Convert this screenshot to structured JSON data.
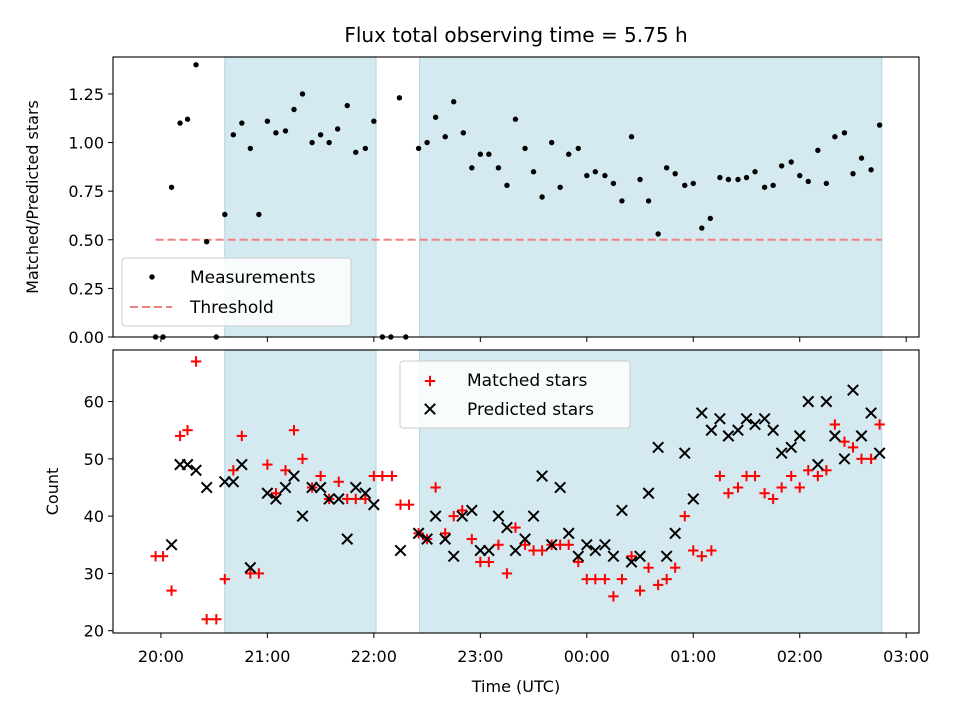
{
  "chart_data": [
    {
      "type": "scatter",
      "panel": "top",
      "title": "Flux total observing time = 5.75 h",
      "xlabel": "",
      "ylabel": "Matched/Predicted stars",
      "ylim": [
        0,
        1.44
      ],
      "yticks": [
        "0.00",
        "0.25",
        "0.50",
        "0.75",
        "1.00",
        "1.25"
      ],
      "x_axis": "time (UTC, hours; 24-27 = 00:00-03:00 next day)",
      "xlim": [
        19.55,
        27.12
      ],
      "observing_windows": [
        [
          20.6,
          22.02
        ],
        [
          22.43,
          26.77
        ]
      ],
      "legend": {
        "placement": "lower-left",
        "entries": [
          "Measurements",
          "Threshold"
        ]
      },
      "threshold": {
        "name": "Threshold",
        "value": 0.5,
        "x_range": [
          19.95,
          26.77
        ],
        "color": "#f08080"
      },
      "series": [
        {
          "name": "Measurements",
          "color": "#000000",
          "marker": "dot",
          "points": [
            [
              19.95,
              0.0
            ],
            [
              20.02,
              0.0
            ],
            [
              20.1,
              0.77
            ],
            [
              20.18,
              1.1
            ],
            [
              20.25,
              1.12
            ],
            [
              20.33,
              1.4
            ],
            [
              20.43,
              0.49
            ],
            [
              20.52,
              0.0
            ],
            [
              20.6,
              0.63
            ],
            [
              20.68,
              1.04
            ],
            [
              20.76,
              1.1
            ],
            [
              20.84,
              0.97
            ],
            [
              20.92,
              0.63
            ],
            [
              21.0,
              1.11
            ],
            [
              21.08,
              1.05
            ],
            [
              21.17,
              1.06
            ],
            [
              21.25,
              1.17
            ],
            [
              21.33,
              1.25
            ],
            [
              21.42,
              1.0
            ],
            [
              21.5,
              1.04
            ],
            [
              21.58,
              1.0
            ],
            [
              21.66,
              1.07
            ],
            [
              21.75,
              1.19
            ],
            [
              21.83,
              0.95
            ],
            [
              21.92,
              0.97
            ],
            [
              22.0,
              1.11
            ],
            [
              22.08,
              0.0
            ],
            [
              22.16,
              0.0
            ],
            [
              22.24,
              1.23
            ],
            [
              22.3,
              0.0
            ],
            [
              22.42,
              0.97
            ],
            [
              22.5,
              1.0
            ],
            [
              22.58,
              1.13
            ],
            [
              22.67,
              1.03
            ],
            [
              22.75,
              1.21
            ],
            [
              22.84,
              1.05
            ],
            [
              22.92,
              0.87
            ],
            [
              23.0,
              0.94
            ],
            [
              23.08,
              0.94
            ],
            [
              23.17,
              0.87
            ],
            [
              23.25,
              0.78
            ],
            [
              23.33,
              1.12
            ],
            [
              23.42,
              0.97
            ],
            [
              23.5,
              0.85
            ],
            [
              23.58,
              0.72
            ],
            [
              23.67,
              1.0
            ],
            [
              23.75,
              0.77
            ],
            [
              23.83,
              0.94
            ],
            [
              23.92,
              0.97
            ],
            [
              24.0,
              0.83
            ],
            [
              24.08,
              0.85
            ],
            [
              24.17,
              0.83
            ],
            [
              24.25,
              0.79
            ],
            [
              24.33,
              0.7
            ],
            [
              24.42,
              1.03
            ],
            [
              24.5,
              0.81
            ],
            [
              24.58,
              0.7
            ],
            [
              24.67,
              0.53
            ],
            [
              24.75,
              0.87
            ],
            [
              24.83,
              0.84
            ],
            [
              24.92,
              0.78
            ],
            [
              25.0,
              0.79
            ],
            [
              25.08,
              0.56
            ],
            [
              25.16,
              0.61
            ],
            [
              25.25,
              0.82
            ],
            [
              25.33,
              0.81
            ],
            [
              25.42,
              0.81
            ],
            [
              25.5,
              0.82
            ],
            [
              25.58,
              0.85
            ],
            [
              25.67,
              0.77
            ],
            [
              25.75,
              0.78
            ],
            [
              25.83,
              0.88
            ],
            [
              25.92,
              0.9
            ],
            [
              26.0,
              0.83
            ],
            [
              26.08,
              0.8
            ],
            [
              26.17,
              0.96
            ],
            [
              26.25,
              0.79
            ],
            [
              26.33,
              1.03
            ],
            [
              26.42,
              1.05
            ],
            [
              26.5,
              0.84
            ],
            [
              26.58,
              0.92
            ],
            [
              26.67,
              0.86
            ],
            [
              26.75,
              1.09
            ]
          ]
        }
      ]
    },
    {
      "type": "scatter",
      "panel": "bottom",
      "xlabel": "Time (UTC)",
      "ylabel": "Count",
      "ylim": [
        19.6,
        69.0
      ],
      "yticks": [
        "20",
        "30",
        "40",
        "50",
        "60"
      ],
      "x_axis": "time (UTC, hours; 24-27 = 00:00-03:00 next day)",
      "xlim": [
        19.55,
        27.12
      ],
      "xticks": [
        "20:00",
        "21:00",
        "22:00",
        "23:00",
        "00:00",
        "01:00",
        "02:00",
        "03:00"
      ],
      "observing_windows": [
        [
          20.6,
          22.02
        ],
        [
          22.43,
          26.77
        ]
      ],
      "legend": {
        "placement": "upper-center",
        "entries": [
          "Matched stars",
          "Predicted stars"
        ]
      },
      "series": [
        {
          "name": "Matched stars",
          "color": "#ff0000",
          "marker": "plus",
          "points": [
            [
              19.95,
              33
            ],
            [
              20.02,
              33
            ],
            [
              20.1,
              27
            ],
            [
              20.18,
              54
            ],
            [
              20.25,
              55
            ],
            [
              20.33,
              67
            ],
            [
              20.43,
              22
            ],
            [
              20.52,
              22
            ],
            [
              20.6,
              29
            ],
            [
              20.68,
              48
            ],
            [
              20.76,
              54
            ],
            [
              20.84,
              30
            ],
            [
              20.92,
              30
            ],
            [
              21.0,
              49
            ],
            [
              21.08,
              44
            ],
            [
              21.17,
              48
            ],
            [
              21.25,
              55
            ],
            [
              21.33,
              50
            ],
            [
              21.42,
              45
            ],
            [
              21.5,
              47
            ],
            [
              21.58,
              43
            ],
            [
              21.67,
              46
            ],
            [
              21.75,
              43
            ],
            [
              21.83,
              43
            ],
            [
              21.92,
              43
            ],
            [
              22.0,
              47
            ],
            [
              22.08,
              47
            ],
            [
              22.17,
              47
            ],
            [
              22.25,
              42
            ],
            [
              22.33,
              42
            ],
            [
              22.42,
              37
            ],
            [
              22.5,
              36
            ],
            [
              22.58,
              45
            ],
            [
              22.67,
              37
            ],
            [
              22.75,
              40
            ],
            [
              22.83,
              41
            ],
            [
              22.92,
              36
            ],
            [
              23.0,
              32
            ],
            [
              23.08,
              32
            ],
            [
              23.17,
              35
            ],
            [
              23.25,
              30
            ],
            [
              23.33,
              38
            ],
            [
              23.42,
              35
            ],
            [
              23.5,
              34
            ],
            [
              23.58,
              34
            ],
            [
              23.67,
              35
            ],
            [
              23.75,
              35
            ],
            [
              23.83,
              35
            ],
            [
              23.92,
              32
            ],
            [
              24.0,
              29
            ],
            [
              24.08,
              29
            ],
            [
              24.17,
              29
            ],
            [
              24.25,
              26
            ],
            [
              24.33,
              29
            ],
            [
              24.42,
              33
            ],
            [
              24.5,
              27
            ],
            [
              24.58,
              31
            ],
            [
              24.67,
              28
            ],
            [
              24.75,
              29
            ],
            [
              24.83,
              31
            ],
            [
              24.92,
              40
            ],
            [
              25.0,
              34
            ],
            [
              25.08,
              33
            ],
            [
              25.17,
              34
            ],
            [
              25.25,
              47
            ],
            [
              25.33,
              44
            ],
            [
              25.42,
              45
            ],
            [
              25.5,
              47
            ],
            [
              25.58,
              47
            ],
            [
              25.67,
              44
            ],
            [
              25.75,
              43
            ],
            [
              25.83,
              45
            ],
            [
              25.92,
              47
            ],
            [
              26.0,
              45
            ],
            [
              26.08,
              48
            ],
            [
              26.17,
              47
            ],
            [
              26.25,
              48
            ],
            [
              26.33,
              56
            ],
            [
              26.42,
              53
            ],
            [
              26.5,
              52
            ],
            [
              26.58,
              50
            ],
            [
              26.67,
              50
            ],
            [
              26.75,
              56
            ]
          ]
        },
        {
          "name": "Predicted stars",
          "color": "#000000",
          "marker": "x",
          "points": [
            [
              20.1,
              35
            ],
            [
              20.18,
              49
            ],
            [
              20.25,
              49
            ],
            [
              20.33,
              48
            ],
            [
              20.43,
              45
            ],
            [
              20.6,
              46
            ],
            [
              20.68,
              46
            ],
            [
              20.76,
              49
            ],
            [
              20.84,
              31
            ],
            [
              21.0,
              44
            ],
            [
              21.08,
              43
            ],
            [
              21.17,
              45
            ],
            [
              21.25,
              47
            ],
            [
              21.33,
              40
            ],
            [
              21.42,
              45
            ],
            [
              21.5,
              45
            ],
            [
              21.58,
              43
            ],
            [
              21.67,
              43
            ],
            [
              21.75,
              36
            ],
            [
              21.83,
              45
            ],
            [
              21.92,
              44
            ],
            [
              22.0,
              42
            ],
            [
              22.25,
              34
            ],
            [
              22.42,
              37
            ],
            [
              22.5,
              36
            ],
            [
              22.58,
              40
            ],
            [
              22.67,
              36
            ],
            [
              22.75,
              33
            ],
            [
              22.83,
              40
            ],
            [
              22.92,
              41
            ],
            [
              23.0,
              34
            ],
            [
              23.08,
              34
            ],
            [
              23.17,
              40
            ],
            [
              23.25,
              38
            ],
            [
              23.33,
              34
            ],
            [
              23.42,
              36
            ],
            [
              23.5,
              40
            ],
            [
              23.58,
              47
            ],
            [
              23.67,
              35
            ],
            [
              23.75,
              45
            ],
            [
              23.83,
              37
            ],
            [
              23.92,
              33
            ],
            [
              24.0,
              35
            ],
            [
              24.08,
              34
            ],
            [
              24.17,
              35
            ],
            [
              24.25,
              33
            ],
            [
              24.33,
              41
            ],
            [
              24.42,
              32
            ],
            [
              24.5,
              33
            ],
            [
              24.58,
              44
            ],
            [
              24.67,
              52
            ],
            [
              24.75,
              33
            ],
            [
              24.83,
              37
            ],
            [
              24.92,
              51
            ],
            [
              25.0,
              43
            ],
            [
              25.08,
              58
            ],
            [
              25.17,
              55
            ],
            [
              25.25,
              57
            ],
            [
              25.33,
              54
            ],
            [
              25.42,
              55
            ],
            [
              25.5,
              57
            ],
            [
              25.58,
              56
            ],
            [
              25.67,
              57
            ],
            [
              25.75,
              55
            ],
            [
              25.83,
              51
            ],
            [
              25.92,
              52
            ],
            [
              26.0,
              54
            ],
            [
              26.08,
              60
            ],
            [
              26.17,
              49
            ],
            [
              26.25,
              60
            ],
            [
              26.33,
              54
            ],
            [
              26.42,
              50
            ],
            [
              26.5,
              62
            ],
            [
              26.58,
              54
            ],
            [
              26.67,
              58
            ],
            [
              26.75,
              51
            ]
          ]
        }
      ]
    }
  ],
  "colors": {
    "observing_window": "#d4eaf0",
    "observing_window_edge": "#b7d9e5",
    "threshold": "#f08080",
    "matched": "#ff0000",
    "predicted": "#000000",
    "measurements": "#000000"
  }
}
